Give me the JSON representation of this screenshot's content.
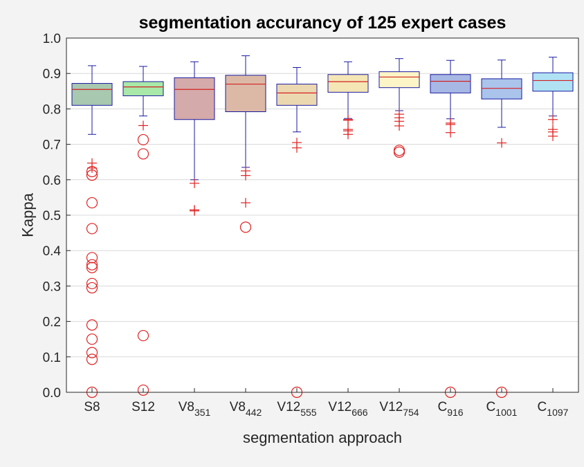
{
  "chart_data": {
    "type": "box",
    "title": "segmentation accurancy of 125 expert cases",
    "xlabel": "segmentation approach",
    "ylabel": "Kappa",
    "ylim": [
      0,
      1
    ],
    "yticks": [
      "0.0",
      "0.1",
      "0.2",
      "0.3",
      "0.4",
      "0.5",
      "0.6",
      "0.7",
      "0.8",
      "0.9",
      "1.0"
    ],
    "grid": "horizontal",
    "categories": [
      {
        "base": "S8",
        "sub": ""
      },
      {
        "base": "S12",
        "sub": ""
      },
      {
        "base": "V8",
        "sub": "351"
      },
      {
        "base": "V8",
        "sub": "442"
      },
      {
        "base": "V12",
        "sub": "555"
      },
      {
        "base": "V12",
        "sub": "666"
      },
      {
        "base": "V12",
        "sub": "754"
      },
      {
        "base": "C",
        "sub": "916"
      },
      {
        "base": "C",
        "sub": "1001"
      },
      {
        "base": "C",
        "sub": "1097"
      }
    ],
    "boxes": [
      {
        "q1": 0.81,
        "median": 0.855,
        "q3": 0.872,
        "whisker_low": 0.728,
        "whisker_high": 0.922,
        "color": "#a8c8b0",
        "outliers_plus": [
          0.647,
          0.633
        ],
        "outliers_circle": [
          0.623,
          0.613,
          0.535,
          0.462,
          0.38,
          0.36,
          0.352,
          0.307,
          0.295,
          0.19,
          0.15,
          0.112,
          0.093,
          0.0
        ]
      },
      {
        "q1": 0.837,
        "median": 0.862,
        "q3": 0.877,
        "whisker_low": 0.78,
        "whisker_high": 0.92,
        "color": "#a8e8a8",
        "outliers_plus": [
          0.753
        ],
        "outliers_circle": [
          0.713,
          0.673,
          0.16,
          0.006
        ]
      },
      {
        "q1": 0.77,
        "median": 0.855,
        "q3": 0.888,
        "whisker_low": 0.6,
        "whisker_high": 0.933,
        "color": "#d4aaaa",
        "outliers_plus": [
          0.59,
          0.515,
          0.512
        ],
        "outliers_circle": []
      },
      {
        "q1": 0.792,
        "median": 0.87,
        "q3": 0.895,
        "whisker_low": 0.635,
        "whisker_high": 0.95,
        "color": "#dbb9a6",
        "outliers_plus": [
          0.625,
          0.612,
          0.535
        ],
        "outliers_circle": [
          0.466
        ]
      },
      {
        "q1": 0.81,
        "median": 0.845,
        "q3": 0.87,
        "whisker_low": 0.735,
        "whisker_high": 0.917,
        "color": "#ecd8b0",
        "outliers_plus": [
          0.705,
          0.69
        ],
        "outliers_circle": [
          0.0
        ]
      },
      {
        "q1": 0.847,
        "median": 0.877,
        "q3": 0.897,
        "whisker_low": 0.773,
        "whisker_high": 0.933,
        "color": "#f5e6b5",
        "outliers_plus": [
          0.77,
          0.768,
          0.742,
          0.738,
          0.728
        ],
        "outliers_circle": []
      },
      {
        "q1": 0.86,
        "median": 0.89,
        "q3": 0.905,
        "whisker_low": 0.795,
        "whisker_high": 0.942,
        "color": "#fbf5c8",
        "outliers_plus": [
          0.785,
          0.775,
          0.765,
          0.752
        ],
        "outliers_circle": [
          0.683,
          0.678
        ]
      },
      {
        "q1": 0.845,
        "median": 0.878,
        "q3": 0.897,
        "whisker_low": 0.772,
        "whisker_high": 0.937,
        "color": "#a8b8e4",
        "outliers_plus": [
          0.76,
          0.756,
          0.733
        ],
        "outliers_circle": [
          0.0
        ]
      },
      {
        "q1": 0.828,
        "median": 0.858,
        "q3": 0.885,
        "whisker_low": 0.748,
        "whisker_high": 0.938,
        "color": "#aac4ec",
        "outliers_plus": [
          0.704
        ],
        "outliers_circle": [
          0.0
        ]
      },
      {
        "q1": 0.85,
        "median": 0.88,
        "q3": 0.902,
        "whisker_low": 0.78,
        "whisker_high": 0.946,
        "color": "#b0e2f4",
        "outliers_plus": [
          0.77,
          0.742,
          0.735,
          0.723
        ],
        "outliers_circle": []
      }
    ],
    "colors": {
      "box_edge": "#1a1aa0",
      "whisker": "#1a1aa0",
      "median": "#d42020",
      "outlier": "#e02020",
      "grid": "#d8d8d8",
      "axes": "#262626"
    }
  }
}
